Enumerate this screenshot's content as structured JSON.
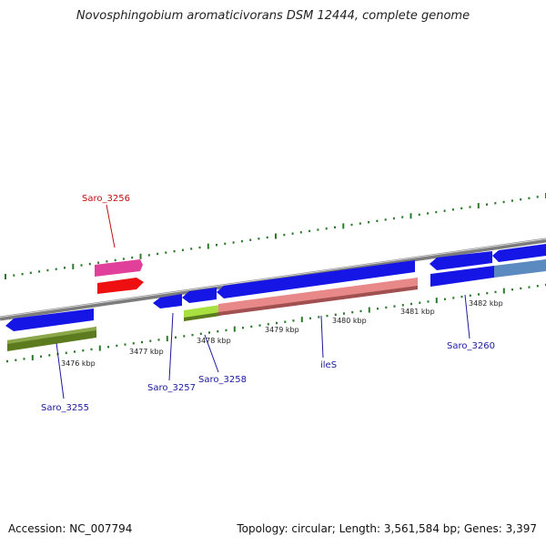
{
  "title": "Novosphingobium aromaticivorans DSM 12444, complete genome",
  "footer": {
    "accession": "Accession: NC_007794",
    "topology": "Topology: circular; Length: 3,561,584 bp; Genes: 3,397"
  },
  "ticks": [
    "3476 kbp",
    "3477 kbp",
    "3478 kbp",
    "3479 kbp",
    "3480 kbp",
    "3481 kbp",
    "3482 kbp"
  ],
  "gene_labels": {
    "saro_3255": "Saro_3255",
    "saro_3256": "Saro_3256",
    "saro_3257": "Saro_3257",
    "saro_3258": "Saro_3258",
    "ileS": "ileS",
    "saro_3260": "Saro_3260"
  },
  "colors": {
    "cds": "#1010e0",
    "gene_olive": "#5c7a1e",
    "gene_pink": "#e0409a",
    "gene_red": "#ee1010",
    "gene_salmon": "#e88888",
    "gene_lime": "#a8e040",
    "gene_steel": "#5a8ac0",
    "tick": "#2a7a2a",
    "label_blue": "#1a1aa0",
    "label_red": "#c01010"
  }
}
